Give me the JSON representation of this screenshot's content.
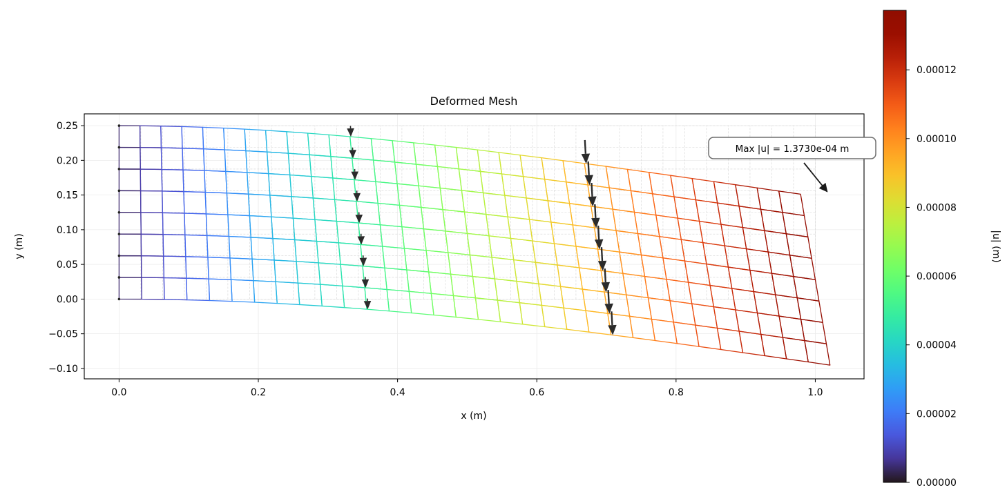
{
  "chart_data": {
    "type": "deformed-mesh",
    "title": "Deformed Mesh",
    "xlabel": "x (m)",
    "ylabel": "y (m)",
    "xlim": [
      -0.05,
      1.07
    ],
    "ylim": [
      -0.115,
      0.267
    ],
    "xticks": [
      {
        "value": 0.0,
        "label": "0.0"
      },
      {
        "value": 0.2,
        "label": "0.2"
      },
      {
        "value": 0.4,
        "label": "0.4"
      },
      {
        "value": 0.6,
        "label": "0.6"
      },
      {
        "value": 0.8,
        "label": "0.8"
      },
      {
        "value": 1.0,
        "label": "1.0"
      }
    ],
    "yticks": [
      {
        "value": 0.25,
        "label": "0.25"
      },
      {
        "value": 0.2,
        "label": "0.20"
      },
      {
        "value": 0.15,
        "label": "0.15"
      },
      {
        "value": 0.1,
        "label": "0.10"
      },
      {
        "value": 0.05,
        "label": "0.05"
      },
      {
        "value": 0.0,
        "label": "0.00"
      },
      {
        "value": -0.05,
        "label": "−0.05"
      },
      {
        "value": -0.1,
        "label": "−0.10"
      }
    ],
    "grid": true,
    "mesh": {
      "length": 1.0,
      "height": 0.25,
      "nx": 32,
      "ny": 8,
      "tip_deflection": -0.097,
      "tip_rotation": 0.17
    },
    "colorbar": {
      "label": "|u| (m)",
      "min": 0.0,
      "max": 0.0001373,
      "colormap": "turbo",
      "ticks": [
        {
          "value": 0.0,
          "label": "0.00000"
        },
        {
          "value": 2e-05,
          "label": "0.00002"
        },
        {
          "value": 4e-05,
          "label": "0.00004"
        },
        {
          "value": 6e-05,
          "label": "0.00006"
        },
        {
          "value": 8e-05,
          "label": "0.00008"
        },
        {
          "value": 0.0001,
          "label": "0.00010"
        },
        {
          "value": 0.00012,
          "label": "0.00012"
        }
      ]
    },
    "load_arrow_groups": [
      {
        "x": 0.345,
        "scale": 1.0
      },
      {
        "x": 0.69,
        "scale": 2.2
      }
    ],
    "annotation": {
      "text": "Max |u| = 1.3730e-04 m",
      "point": [
        1.02,
        0.152
      ]
    }
  }
}
